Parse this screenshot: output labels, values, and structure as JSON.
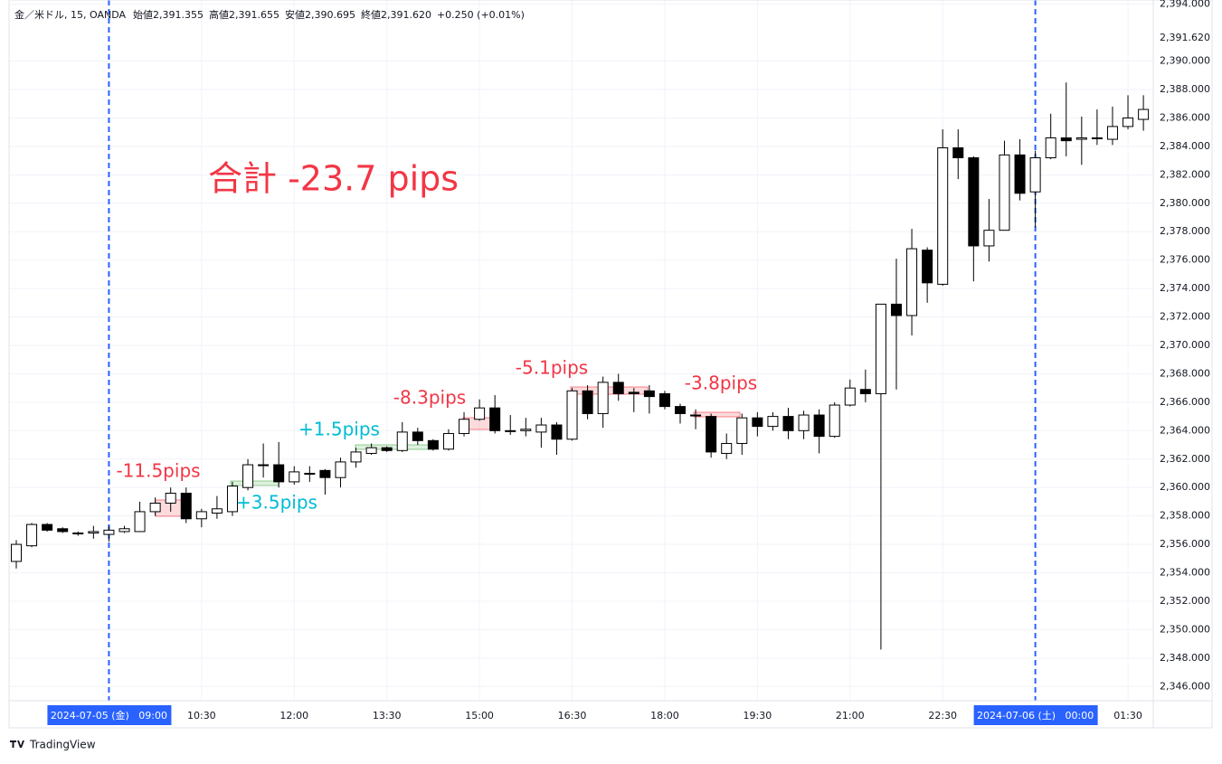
{
  "chart_data": {
    "type": "candlestick",
    "header": [
      "金／米ドル, 15, OANDA",
      "始値2,391.355",
      "高値2,391.655",
      "安値2,390.695",
      "終値2,391.620",
      "+0.250 (+0.01%)"
    ],
    "title": "合計 -23.7 pips",
    "annotations": [
      {
        "text": "-11.5pips",
        "color": "#f23645"
      },
      {
        "text": "+3.5pips",
        "color": "#00bcd4"
      },
      {
        "text": "+1.5pips",
        "color": "#00bcd4"
      },
      {
        "text": "-8.3pips",
        "color": "#f23645"
      },
      {
        "text": "-5.1pips",
        "color": "#f23645"
      },
      {
        "text": "-3.8pips",
        "color": "#f23645"
      }
    ],
    "x": [
      "2024-07-05 07:30",
      "2024-07-05 07:45",
      "2024-07-05 08:00",
      "2024-07-05 08:15",
      "2024-07-05 08:30",
      "2024-07-05 08:45",
      "2024-07-05 09:00",
      "2024-07-05 09:15",
      "2024-07-05 09:30",
      "2024-07-05 09:45",
      "2024-07-05 10:00",
      "2024-07-05 10:15",
      "2024-07-05 10:30",
      "2024-07-05 10:45",
      "2024-07-05 11:00",
      "2024-07-05 11:15",
      "2024-07-05 11:30",
      "2024-07-05 11:45",
      "2024-07-05 12:00",
      "2024-07-05 12:15",
      "2024-07-05 12:30",
      "2024-07-05 12:45",
      "2024-07-05 13:00",
      "2024-07-05 13:15",
      "2024-07-05 13:30",
      "2024-07-05 13:45",
      "2024-07-05 14:00",
      "2024-07-05 14:15",
      "2024-07-05 14:30",
      "2024-07-05 14:45",
      "2024-07-05 15:00",
      "2024-07-05 15:15",
      "2024-07-05 15:30",
      "2024-07-05 15:45",
      "2024-07-05 16:00",
      "2024-07-05 16:15",
      "2024-07-05 16:30",
      "2024-07-05 16:45",
      "2024-07-05 17:00",
      "2024-07-05 17:15",
      "2024-07-05 17:30",
      "2024-07-05 17:45",
      "2024-07-05 18:00",
      "2024-07-05 18:15",
      "2024-07-05 18:30",
      "2024-07-05 18:45",
      "2024-07-05 19:00",
      "2024-07-05 19:15",
      "2024-07-05 19:30",
      "2024-07-05 19:45",
      "2024-07-05 20:00",
      "2024-07-05 20:15",
      "2024-07-05 20:30",
      "2024-07-05 20:45",
      "2024-07-05 21:00",
      "2024-07-05 21:15",
      "2024-07-05 21:30",
      "2024-07-05 21:45",
      "2024-07-05 22:00",
      "2024-07-05 22:15",
      "2024-07-05 22:30",
      "2024-07-05 22:45",
      "2024-07-05 23:00",
      "2024-07-05 23:15",
      "2024-07-05 23:30",
      "2024-07-05 23:45",
      "2024-07-06 00:00",
      "2024-07-06 00:15",
      "2024-07-06 00:30",
      "2024-07-06 00:45",
      "2024-07-06 01:00",
      "2024-07-06 01:15",
      "2024-07-06 01:30",
      "2024-07-06 01:45"
    ],
    "open": [
      2354.8,
      2355.9,
      2357.4,
      2357.1,
      2356.8,
      2356.8,
      2356.7,
      2356.9,
      2356.9,
      2358.3,
      2358.9,
      2359.6,
      2357.8,
      2358.2,
      2358.3,
      2360.0,
      2361.6,
      2361.6,
      2360.4,
      2361.0,
      2361.2,
      2360.7,
      2361.8,
      2362.4,
      2362.8,
      2362.6,
      2363.9,
      2363.3,
      2362.7,
      2363.8,
      2364.8,
      2365.6,
      2364.0,
      2364.0,
      2363.9,
      2364.4,
      2363.4,
      2366.8,
      2365.2,
      2367.4,
      2366.7,
      2366.8,
      2366.6,
      2365.7,
      2365.1,
      2365.0,
      2362.4,
      2363.1,
      2364.9,
      2364.3,
      2365.0,
      2364.0,
      2365.1,
      2363.6,
      2365.8,
      2366.9,
      2366.6,
      2372.9,
      2372.1,
      2376.7,
      2374.3,
      2383.9,
      2383.2,
      2377.0,
      2378.1,
      2383.4,
      2380.8,
      2383.2,
      2384.6,
      2384.5,
      2384.6,
      2384.5,
      2385.4,
      2385.9
    ],
    "high": [
      2356.3,
      2357.5,
      2357.5,
      2357.2,
      2356.9,
      2357.3,
      2357.3,
      2357.3,
      2359.0,
      2359.3,
      2360.0,
      2360.0,
      2358.5,
      2359.4,
      2360.4,
      2362.0,
      2363.1,
      2363.2,
      2361.5,
      2361.5,
      2361.3,
      2362.1,
      2362.8,
      2363.1,
      2362.9,
      2364.6,
      2364.2,
      2363.4,
      2364.1,
      2365.3,
      2366.2,
      2366.5,
      2365.1,
      2364.9,
      2364.9,
      2364.6,
      2367.0,
      2367.2,
      2367.8,
      2368.0,
      2367.0,
      2367.2,
      2366.8,
      2365.9,
      2365.5,
      2365.2,
      2363.8,
      2365.2,
      2365.3,
      2365.3,
      2365.6,
      2365.4,
      2365.5,
      2366.0,
      2367.6,
      2368.3,
      2372.9,
      2376.1,
      2378.2,
      2376.9,
      2385.2,
      2385.2,
      2383.3,
      2380.3,
      2384.4,
      2384.5,
      2383.7,
      2386.3,
      2388.5,
      2386.1,
      2386.6,
      2386.8,
      2387.6,
      2387.6
    ],
    "low": [
      2354.3,
      2355.8,
      2356.9,
      2356.8,
      2356.6,
      2356.4,
      2356.2,
      2356.8,
      2356.9,
      2358.0,
      2358.3,
      2357.5,
      2357.2,
      2357.8,
      2358.0,
      2359.8,
      2360.7,
      2360.0,
      2360.2,
      2360.4,
      2359.5,
      2360.0,
      2361.4,
      2362.3,
      2362.5,
      2362.5,
      2363.0,
      2362.6,
      2362.6,
      2363.6,
      2364.7,
      2363.8,
      2363.7,
      2363.6,
      2362.8,
      2362.3,
      2363.3,
      2364.8,
      2364.2,
      2366.1,
      2365.3,
      2365.2,
      2365.5,
      2364.5,
      2364.1,
      2362.1,
      2362.0,
      2362.3,
      2363.6,
      2364.0,
      2363.4,
      2363.4,
      2362.4,
      2363.5,
      2365.7,
      2366.0,
      2348.6,
      2366.9,
      2370.7,
      2373.0,
      2374.2,
      2381.7,
      2374.5,
      2375.9,
      2378.1,
      2380.2,
      2378.3,
      2383.1,
      2383.3,
      2382.7,
      2384.1,
      2384.1,
      2385.2,
      2385.1
    ],
    "close": [
      2356.0,
      2357.4,
      2357.0,
      2356.9,
      2356.8,
      2356.9,
      2357.0,
      2357.1,
      2358.3,
      2358.9,
      2359.6,
      2357.8,
      2358.3,
      2358.5,
      2360.1,
      2361.6,
      2361.6,
      2360.4,
      2361.1,
      2361.0,
      2360.7,
      2361.8,
      2362.5,
      2362.8,
      2362.6,
      2363.9,
      2363.3,
      2362.7,
      2363.8,
      2364.8,
      2365.6,
      2364.0,
      2364.0,
      2364.1,
      2364.4,
      2363.4,
      2366.8,
      2365.2,
      2367.4,
      2366.6,
      2366.6,
      2366.4,
      2365.7,
      2365.2,
      2365.1,
      2362.5,
      2363.1,
      2364.9,
      2364.3,
      2365.0,
      2364.0,
      2365.1,
      2363.6,
      2365.8,
      2367.0,
      2366.6,
      2372.9,
      2372.1,
      2376.8,
      2374.4,
      2383.9,
      2383.2,
      2377.0,
      2378.1,
      2383.4,
      2380.7,
      2383.2,
      2384.6,
      2384.4,
      2384.6,
      2384.6,
      2385.4,
      2386.0,
      2386.6
    ],
    "up_color": "#ffffff",
    "down_color": "#000000",
    "wick_color": "#000000",
    "ylim": [
      2345,
      2394.3
    ],
    "yticks": [
      {
        "value": 2346,
        "label": "2,346.000"
      },
      {
        "value": 2348,
        "label": "2,348.000"
      },
      {
        "value": 2350,
        "label": "2,350.000"
      },
      {
        "value": 2352,
        "label": "2,352.000"
      },
      {
        "value": 2354,
        "label": "2,354.000"
      },
      {
        "value": 2356,
        "label": "2,356.000"
      },
      {
        "value": 2358,
        "label": "2,358.000"
      },
      {
        "value": 2360,
        "label": "2,360.000"
      },
      {
        "value": 2362,
        "label": "2,362.000"
      },
      {
        "value": 2364,
        "label": "2,364.000"
      },
      {
        "value": 2366,
        "label": "2,366.000"
      },
      {
        "value": 2368,
        "label": "2,368.000"
      },
      {
        "value": 2370,
        "label": "2,370.000"
      },
      {
        "value": 2372,
        "label": "2,372.000"
      },
      {
        "value": 2374,
        "label": "2,374.000"
      },
      {
        "value": 2376,
        "label": "2,376.000"
      },
      {
        "value": 2378,
        "label": "2,378.000"
      },
      {
        "value": 2380,
        "label": "2,380.000"
      },
      {
        "value": 2382,
        "label": "2,382.000"
      },
      {
        "value": 2384,
        "label": "2,384.000"
      },
      {
        "value": 2386,
        "label": "2,386.000"
      },
      {
        "value": 2388,
        "label": "2,388.000"
      },
      {
        "value": 2390,
        "label": "2,390.000"
      },
      {
        "value": 2394,
        "label": "2,394.000"
      }
    ],
    "last_price": {
      "value": 2391.62,
      "label": "2,391.620"
    },
    "xticks": [
      {
        "value": "2024-07-05 10:30",
        "label": "10:30"
      },
      {
        "value": "2024-07-05 12:00",
        "label": "12:00"
      },
      {
        "value": "2024-07-05 13:30",
        "label": "13:30"
      },
      {
        "value": "2024-07-05 15:00",
        "label": "15:00"
      },
      {
        "value": "2024-07-05 16:30",
        "label": "16:30"
      },
      {
        "value": "2024-07-05 18:00",
        "label": "18:00"
      },
      {
        "value": "2024-07-05 19:30",
        "label": "19:30"
      },
      {
        "value": "2024-07-05 21:00",
        "label": "21:00"
      },
      {
        "value": "2024-07-05 22:30",
        "label": "22:30"
      },
      {
        "value": "2024-07-06 01:30",
        "label": "01:30"
      }
    ],
    "vlines": [
      {
        "value": "2024-07-05 09:00",
        "label": "2024-07-05 (金)   09:00"
      },
      {
        "value": "2024-07-06 00:00",
        "label": "2024-07-06 (土)   00:00"
      }
    ],
    "vline_color": "#2962ff",
    "grid": true,
    "footer": "TradingView"
  }
}
